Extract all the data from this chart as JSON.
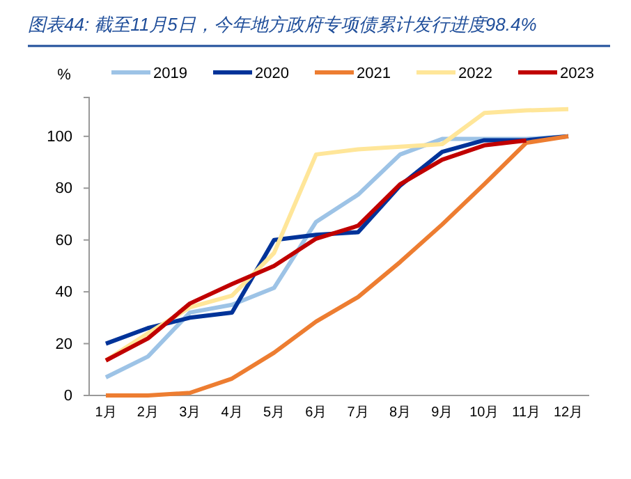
{
  "chart_data": {
    "type": "line",
    "title": "图表44: 截至11月5日，今年地方政府专项债累计发行进度98.4%",
    "ylabel": "%",
    "categories": [
      "1月",
      "2月",
      "3月",
      "4月",
      "5月",
      "6月",
      "7月",
      "8月",
      "9月",
      "10月",
      "11月",
      "12月"
    ],
    "series": [
      {
        "name": "2019",
        "color": "#9dc3e6",
        "values": [
          7,
          15,
          32,
          35,
          41.5,
          67,
          77.5,
          93,
          99,
          99,
          99,
          100
        ]
      },
      {
        "name": "2020",
        "color": "#003399",
        "values": [
          20,
          26,
          30,
          32,
          60,
          62,
          63,
          81,
          94,
          98.5,
          98.5,
          100
        ]
      },
      {
        "name": "2021",
        "color": "#ed7d31",
        "values": [
          0,
          0,
          1,
          6.5,
          16.5,
          28.5,
          38,
          51.5,
          66,
          81.5,
          97.5,
          100
        ]
      },
      {
        "name": "2022",
        "color": "#ffe699",
        "values": [
          13.5,
          24,
          34,
          38.5,
          55,
          93,
          95,
          96,
          97,
          109,
          110,
          110.5
        ]
      },
      {
        "name": "2023",
        "color": "#c00000",
        "values": [
          13.5,
          22,
          35.5,
          43,
          50,
          60.5,
          65.5,
          81.5,
          91,
          96.5,
          98.4,
          null
        ]
      }
    ],
    "ylim": [
      0,
      115
    ],
    "yticks": [
      0,
      20,
      40,
      60,
      80,
      100
    ],
    "grid": false,
    "legend": "top",
    "marker": "none",
    "line_style": "solid"
  }
}
